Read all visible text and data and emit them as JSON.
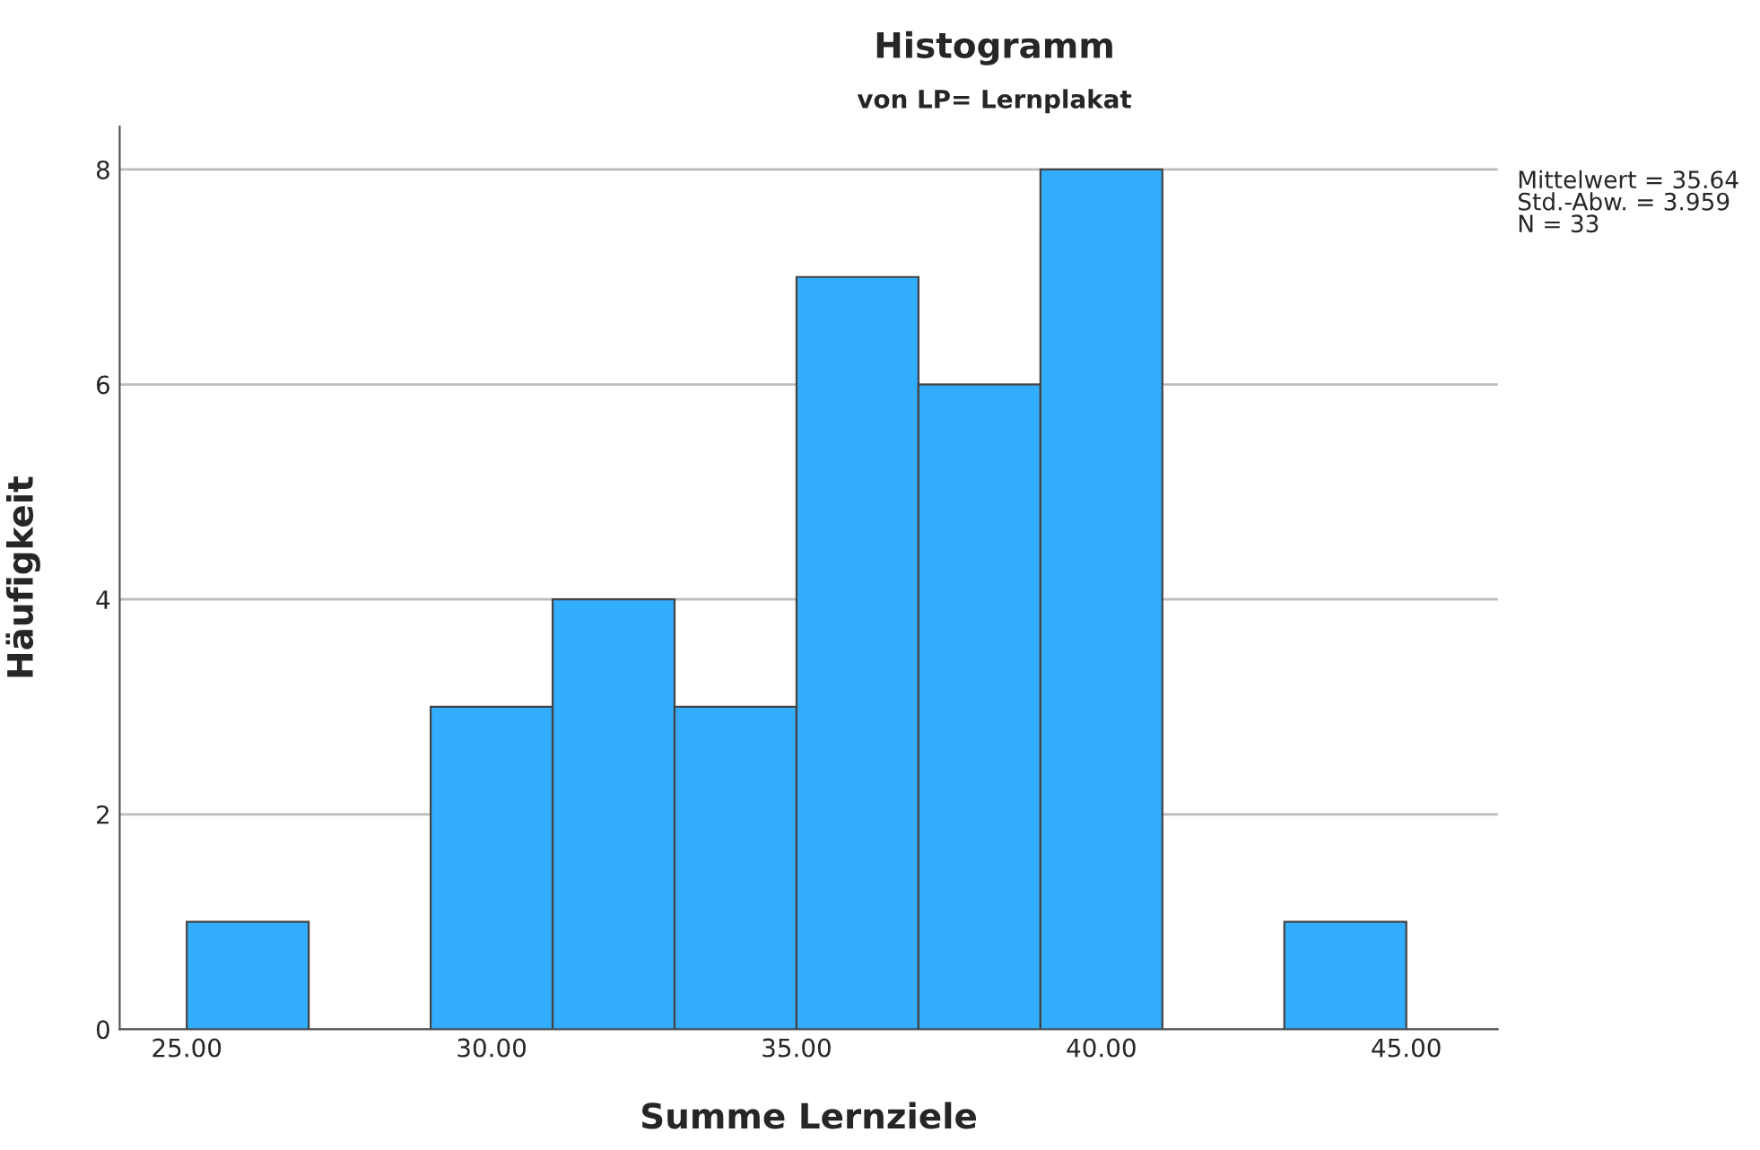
{
  "chart_data": {
    "type": "histogram",
    "title": "Histogramm",
    "subtitle": "von LP= Lernplakat",
    "xlabel": "Summe Lernziele",
    "ylabel": "Häufigkeit",
    "bins": [
      25,
      27,
      29,
      31,
      33,
      35,
      37,
      39,
      41,
      43,
      45
    ],
    "values": [
      1,
      0,
      3,
      4,
      3,
      7,
      6,
      8,
      0,
      1
    ],
    "color": "#33adfd",
    "xlim": [
      23.9,
      46.5
    ],
    "ylim": [
      0,
      8.4
    ],
    "xticks": [
      {
        "value": 25,
        "label": "25.00"
      },
      {
        "value": 30,
        "label": "30.00"
      },
      {
        "value": 35,
        "label": "35.00"
      },
      {
        "value": 40,
        "label": "40.00"
      },
      {
        "value": 45,
        "label": "45.00"
      }
    ],
    "yticks": [
      0,
      2,
      4,
      6,
      8
    ],
    "grid": "y",
    "annotations": [
      "Mittelwert = 35.64\nStd.-Abw. = 3.959\nN = 33"
    ]
  }
}
